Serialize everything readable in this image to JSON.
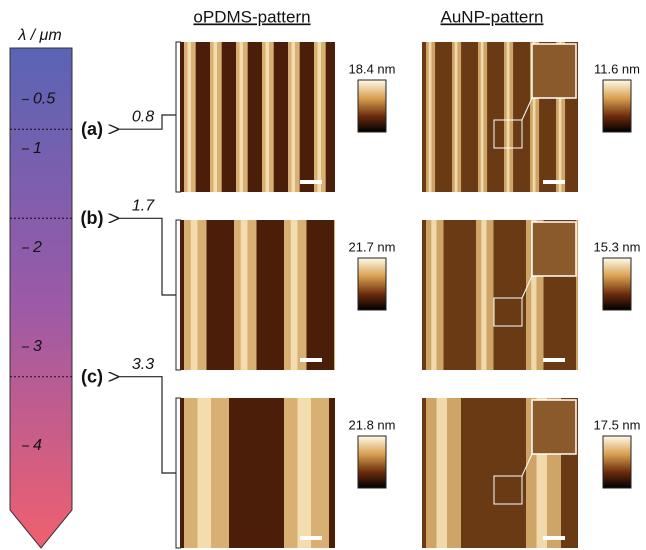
{
  "axis": {
    "title": "λ / μm",
    "lim": [
      0,
      5
    ],
    "ticks": [
      0.5,
      1,
      2,
      3,
      4
    ]
  },
  "rows": [
    {
      "label": "(a)",
      "value": 0.8
    },
    {
      "label": "(b)",
      "value": 1.7
    },
    {
      "label": "(c)",
      "value": 3.3
    }
  ],
  "columns": [
    "oPDMS-pattern",
    "AuNP-pattern"
  ],
  "scales": [
    [
      "18.4 nm",
      "11.6 nm"
    ],
    [
      "21.7 nm",
      "15.3 nm"
    ],
    [
      "21.8 nm",
      "17.5 nm"
    ]
  ]
}
